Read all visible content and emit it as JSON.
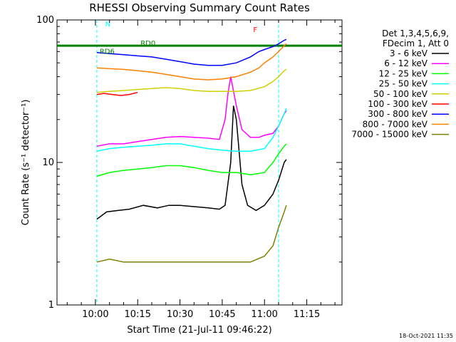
{
  "chart_data": {
    "type": "line",
    "title": "RHESSI Observing Summary Count Rates",
    "xlabel": "Start Time (21-Jul-11 09:46:22)",
    "ylabel": "Count Rate (s⁻¹ detector⁻¹)",
    "yscale": "log",
    "ylim": [
      1,
      100
    ],
    "xlim": [
      "09:46:22",
      "11:27:30"
    ],
    "x_ticks": [
      "10:00",
      "10:15",
      "10:30",
      "10:45",
      "11:00",
      "11:15"
    ],
    "y_ticks": [
      "1",
      "10",
      "100"
    ],
    "legend": {
      "header": [
        "Det 1,3,4,5,6,9,",
        "FDecim 1, Att 0"
      ],
      "placement": "right"
    },
    "footer_stamp": "18-Oct-2021 11:35",
    "gaps": [
      [
        "09:50:30",
        "10:01:00"
      ],
      [
        "11:07:50",
        "11:27:30"
      ]
    ],
    "night_intervals": [
      [
        "09:46:22",
        "10:00:30"
      ],
      [
        "11:05:00",
        "11:27:30"
      ]
    ],
    "flag_labels": [
      {
        "text": "N",
        "time": "10:03:30",
        "value": 90,
        "color": "#00ffff"
      },
      {
        "text": "F",
        "time": "10:56:00",
        "value": 82,
        "color": "#ff0000"
      },
      {
        "text": "RD0",
        "time": "10:16:00",
        "value": 66,
        "color": "#008000"
      },
      {
        "text": "RD6",
        "time": "10:01:30",
        "value": 58,
        "color": "#008000"
      }
    ],
    "series": [
      {
        "name": "3 - 6 keV",
        "color": "#000000",
        "points": [
          [
            "10:00:30",
            4.0
          ],
          [
            "10:04",
            4.5
          ],
          [
            "10:08",
            4.6
          ],
          [
            "10:12",
            4.7
          ],
          [
            "10:17",
            5.0
          ],
          [
            "10:22",
            4.8
          ],
          [
            "10:26",
            5.0
          ],
          [
            "10:30",
            5.0
          ],
          [
            "10:35",
            4.9
          ],
          [
            "10:40",
            4.8
          ],
          [
            "10:44",
            4.7
          ],
          [
            "10:46",
            5.0
          ],
          [
            "10:48",
            10.0
          ],
          [
            "10:49",
            25.0
          ],
          [
            "10:50",
            20.0
          ],
          [
            "10:51",
            12.0
          ],
          [
            "10:52",
            7.0
          ],
          [
            "10:54",
            5.0
          ],
          [
            "10:57",
            4.6
          ],
          [
            "11:00",
            5.0
          ],
          [
            "11:03",
            6.0
          ],
          [
            "11:05",
            7.5
          ],
          [
            "11:07",
            10.0
          ],
          [
            "11:07:45",
            10.5
          ]
        ]
      },
      {
        "name": "6 - 12 keV",
        "color": "#ff00ff",
        "points": [
          [
            "10:00:30",
            13.0
          ],
          [
            "10:05",
            13.5
          ],
          [
            "10:10",
            13.5
          ],
          [
            "10:15",
            14.0
          ],
          [
            "10:20",
            14.5
          ],
          [
            "10:25",
            15.0
          ],
          [
            "10:30",
            15.2
          ],
          [
            "10:35",
            15.0
          ],
          [
            "10:40",
            14.8
          ],
          [
            "10:44",
            14.5
          ],
          [
            "10:46",
            20.0
          ],
          [
            "10:47",
            30.0
          ],
          [
            "10:48",
            40.0
          ],
          [
            "10:50",
            25.0
          ],
          [
            "10:52",
            17.0
          ],
          [
            "10:55",
            15.0
          ],
          [
            "10:58",
            15.0
          ],
          [
            "11:00",
            15.5
          ],
          [
            "11:03",
            16.0
          ],
          [
            "11:05",
            18.0
          ],
          [
            "11:07",
            22.0
          ],
          [
            "11:07:45",
            23.0
          ]
        ]
      },
      {
        "name": "12 - 25 keV",
        "color": "#00ff00",
        "points": [
          [
            "10:00:30",
            8.0
          ],
          [
            "10:05",
            8.5
          ],
          [
            "10:10",
            8.8
          ],
          [
            "10:15",
            9.0
          ],
          [
            "10:20",
            9.2
          ],
          [
            "10:25",
            9.5
          ],
          [
            "10:30",
            9.5
          ],
          [
            "10:35",
            9.2
          ],
          [
            "10:40",
            8.8
          ],
          [
            "10:45",
            8.5
          ],
          [
            "10:50",
            8.5
          ],
          [
            "10:55",
            8.2
          ],
          [
            "11:00",
            8.5
          ],
          [
            "11:03",
            10.0
          ],
          [
            "11:05",
            11.5
          ],
          [
            "11:07",
            13.0
          ],
          [
            "11:07:45",
            13.5
          ]
        ]
      },
      {
        "name": "25 - 50 keV",
        "color": "#00ffff",
        "points": [
          [
            "10:00:30",
            12.0
          ],
          [
            "10:05",
            12.5
          ],
          [
            "10:10",
            12.8
          ],
          [
            "10:15",
            13.0
          ],
          [
            "10:20",
            13.2
          ],
          [
            "10:25",
            13.5
          ],
          [
            "10:30",
            13.5
          ],
          [
            "10:35",
            13.0
          ],
          [
            "10:40",
            12.5
          ],
          [
            "10:45",
            12.2
          ],
          [
            "10:50",
            12.0
          ],
          [
            "10:55",
            12.0
          ],
          [
            "11:00",
            12.5
          ],
          [
            "11:03",
            15.0
          ],
          [
            "11:05",
            18.0
          ],
          [
            "11:07",
            22.0
          ],
          [
            "11:07:45",
            24.0
          ]
        ]
      },
      {
        "name": "50 - 100 keV",
        "color": "#d0d000",
        "points": [
          [
            "10:00:30",
            31.0
          ],
          [
            "10:05",
            31.5
          ],
          [
            "10:10",
            32.0
          ],
          [
            "10:15",
            32.5
          ],
          [
            "10:20",
            33.0
          ],
          [
            "10:25",
            33.5
          ],
          [
            "10:30",
            33.0
          ],
          [
            "10:35",
            32.0
          ],
          [
            "10:40",
            31.5
          ],
          [
            "10:45",
            31.5
          ],
          [
            "10:50",
            31.5
          ],
          [
            "10:55",
            32.0
          ],
          [
            "11:00",
            34.0
          ],
          [
            "11:03",
            37.0
          ],
          [
            "11:05",
            40.0
          ],
          [
            "11:07",
            44.0
          ],
          [
            "11:07:45",
            45.0
          ]
        ]
      },
      {
        "name": "100 - 300 keV",
        "color": "#ff0000",
        "points": [
          [
            "10:00:30",
            30.0
          ],
          [
            "10:03",
            30.5
          ],
          [
            "10:06",
            30.0
          ],
          [
            "10:09",
            29.5
          ],
          [
            "10:12",
            30.0
          ],
          [
            "10:15",
            31.0
          ]
        ]
      },
      {
        "name": "300 - 800 keV",
        "color": "#0000ff",
        "points": [
          [
            "10:00:30",
            59.0
          ],
          [
            "10:05",
            58.0
          ],
          [
            "10:10",
            57.0
          ],
          [
            "10:15",
            56.0
          ],
          [
            "10:20",
            55.0
          ],
          [
            "10:25",
            53.0
          ],
          [
            "10:30",
            51.0
          ],
          [
            "10:35",
            49.0
          ],
          [
            "10:40",
            48.0
          ],
          [
            "10:45",
            48.0
          ],
          [
            "10:50",
            50.0
          ],
          [
            "10:55",
            55.0
          ],
          [
            "10:58",
            60.0
          ],
          [
            "11:00",
            62.0
          ],
          [
            "11:03",
            65.0
          ],
          [
            "11:05",
            68.0
          ],
          [
            "11:07",
            72.0
          ],
          [
            "11:07:45",
            73.0
          ]
        ]
      },
      {
        "name": "800 - 7000 keV",
        "color": "#ff8000",
        "points": [
          [
            "10:00:30",
            46.0
          ],
          [
            "10:05",
            45.5
          ],
          [
            "10:10",
            45.0
          ],
          [
            "10:15",
            44.0
          ],
          [
            "10:20",
            43.0
          ],
          [
            "10:25",
            41.5
          ],
          [
            "10:30",
            40.0
          ],
          [
            "10:35",
            38.5
          ],
          [
            "10:40",
            38.0
          ],
          [
            "10:45",
            38.5
          ],
          [
            "10:50",
            40.0
          ],
          [
            "10:55",
            43.0
          ],
          [
            "10:58",
            46.0
          ],
          [
            "11:00",
            50.0
          ],
          [
            "11:03",
            55.0
          ],
          [
            "11:05",
            60.0
          ],
          [
            "11:07",
            66.0
          ],
          [
            "11:07:45",
            68.0
          ]
        ]
      },
      {
        "name": "7000 - 15000 keV",
        "color": "#808000",
        "points": [
          [
            "10:00:30",
            2.0
          ],
          [
            "10:05",
            2.1
          ],
          [
            "10:10",
            2.0
          ],
          [
            "10:15",
            2.0
          ],
          [
            "10:20",
            2.0
          ],
          [
            "10:25",
            2.0
          ],
          [
            "10:30",
            2.0
          ],
          [
            "10:35",
            2.0
          ],
          [
            "10:40",
            2.0
          ],
          [
            "10:45",
            2.0
          ],
          [
            "10:50",
            2.0
          ],
          [
            "10:55",
            2.0
          ],
          [
            "11:00",
            2.2
          ],
          [
            "11:03",
            2.6
          ],
          [
            "11:05",
            3.5
          ],
          [
            "11:07",
            4.5
          ],
          [
            "11:07:45",
            5.0
          ]
        ]
      }
    ],
    "reference_lines": [
      {
        "name": "RD0",
        "color": "#008000",
        "value": 66,
        "time_range": [
          "09:46:22",
          "11:27:30"
        ]
      }
    ]
  }
}
